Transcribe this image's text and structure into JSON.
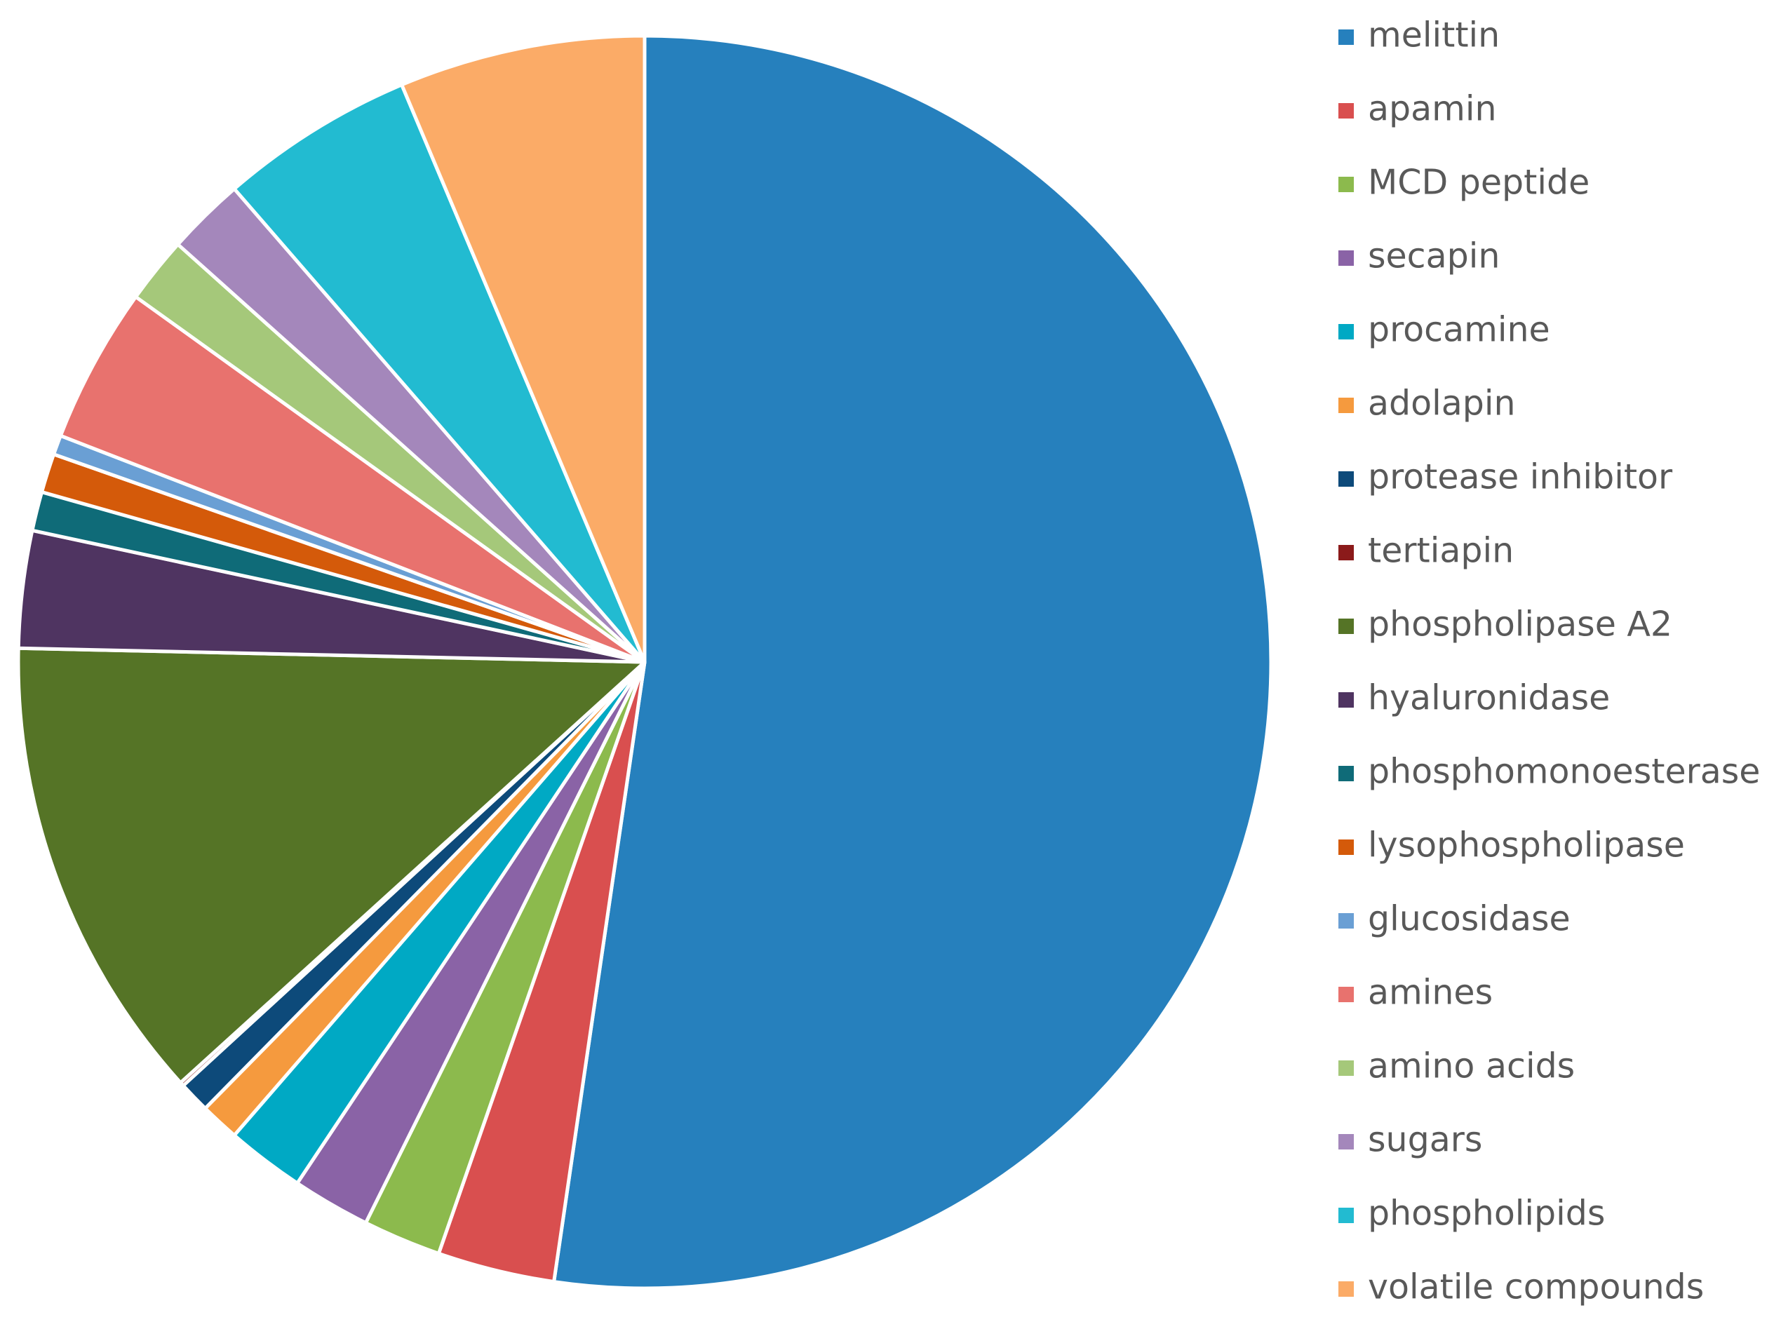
{
  "chart_data": {
    "type": "pie",
    "categories": [
      "melittin",
      "apamin",
      "MCD peptide",
      "secapin",
      "procamine",
      "adolapin",
      "protease inhibitor",
      "tertiapin",
      "phospholipase A2",
      "hyaluronidase",
      "phosphomonoesterase",
      "lysophospholipase",
      "glucosidase",
      "amines",
      "amino acids",
      "sugars",
      "phospholipids",
      "volatile compounds"
    ],
    "values": [
      52,
      3,
      2,
      2,
      2,
      1,
      0.8,
      0.1,
      12,
      3,
      1,
      1,
      0.5,
      4,
      1.7,
      2,
      5,
      6.3
    ],
    "colors": [
      "#2680bd",
      "#d94f4f",
      "#8cba4d",
      "#8a63a6",
      "#00a9c4",
      "#f59a3e",
      "#0d4a7a",
      "#8b1a1a",
      "#557426",
      "#4f3461",
      "#0f6b78",
      "#d45a0a",
      "#6a9fd4",
      "#e8726e",
      "#a5c87a",
      "#a487bb",
      "#22bbd1",
      "#fbab67"
    ],
    "legend": "right"
  }
}
